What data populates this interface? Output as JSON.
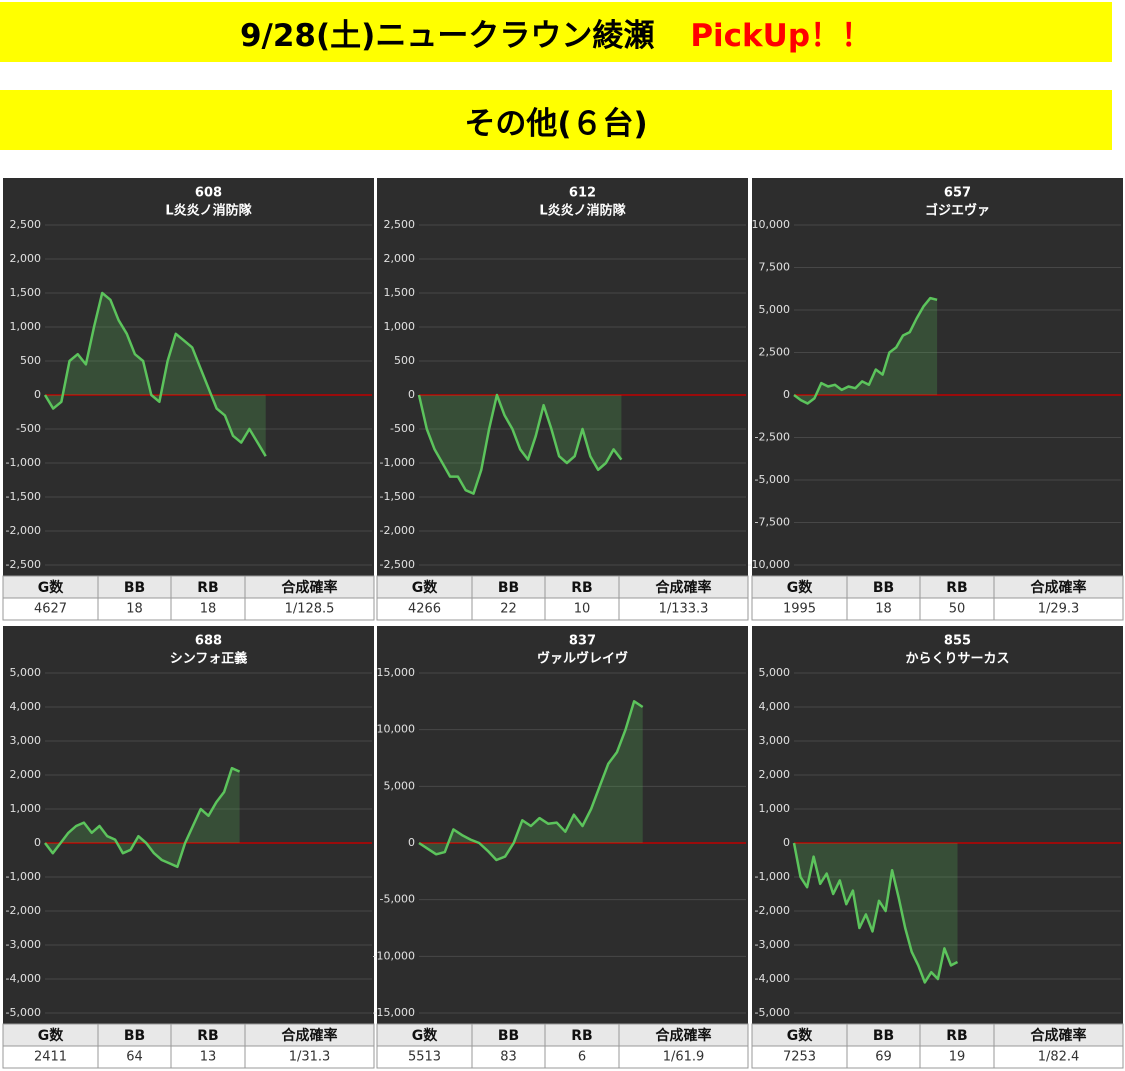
{
  "header": {
    "title": "9/28(土)ニュークラウン綾瀬",
    "highlight": "PickUp！！"
  },
  "section": "その他(６台)",
  "chart_data": [
    {
      "type": "line",
      "title": "608",
      "subtitle": "L炎炎ノ消防隊",
      "color": "#5cc45c",
      "values": [
        0,
        -200,
        -100,
        500,
        600,
        450,
        1000,
        1500,
        1400,
        1100,
        900,
        600,
        500,
        0,
        -100,
        500,
        900,
        800,
        700,
        400,
        100,
        -200,
        -300,
        -600,
        -700,
        -500,
        -700,
        -900
      ],
      "xlim": [
        0,
        40
      ],
      "ylim": [
        -2500,
        2500
      ],
      "yticks": [
        {
          "value": 2500,
          "label": "2,500"
        },
        {
          "value": 2000,
          "label": "2,000"
        },
        {
          "value": 1500,
          "label": "1,500"
        },
        {
          "value": 1000,
          "label": "1,000"
        },
        500,
        0,
        -500,
        {
          "value": -1000,
          "label": "-1,000"
        },
        {
          "value": -1500,
          "label": "-1,500"
        },
        {
          "value": -2000,
          "label": "-2,000"
        },
        {
          "value": -2500,
          "label": "-2,500"
        }
      ],
      "table": {
        "columns": [
          "G数",
          "BB",
          "RB",
          "合成確率"
        ],
        "row": [
          4627,
          18,
          18,
          "1/128.5"
        ]
      }
    },
    {
      "type": "line",
      "title": "612",
      "subtitle": "L炎炎ノ消防隊",
      "color": "#5cc45c",
      "values": [
        0,
        -500,
        -800,
        -1000,
        -1200,
        -1200,
        -1400,
        -1450,
        -1100,
        -500,
        0,
        -300,
        -500,
        -800,
        -950,
        -600,
        -150,
        -500,
        -900,
        -1000,
        -900,
        -500,
        -900,
        -1100,
        -1000,
        -800,
        -950
      ],
      "xlim": [
        0,
        42
      ],
      "ylim": [
        -2500,
        2500
      ],
      "yticks": [
        {
          "value": 2500,
          "label": "2,500"
        },
        {
          "value": 2000,
          "label": "2,000"
        },
        {
          "value": 1500,
          "label": "1,500"
        },
        {
          "value": 1000,
          "label": "1,000"
        },
        500,
        0,
        -500,
        {
          "value": -1000,
          "label": "-1,000"
        },
        {
          "value": -1500,
          "label": "-1,500"
        },
        {
          "value": -2000,
          "label": "-2,000"
        },
        {
          "value": -2500,
          "label": "-2,500"
        }
      ],
      "table": {
        "columns": [
          "G数",
          "BB",
          "RB",
          "合成確率"
        ],
        "row": [
          4266,
          22,
          10,
          "1/133.3"
        ]
      }
    },
    {
      "type": "line",
      "title": "657",
      "subtitle": "ゴジエヴァ",
      "color": "#5cc45c",
      "values": [
        0,
        -300,
        -500,
        -200,
        700,
        500,
        600,
        300,
        500,
        400,
        800,
        600,
        1500,
        1200,
        2500,
        2800,
        3500,
        3700,
        4500,
        5200,
        5700,
        5600
      ],
      "xlim": [
        0,
        48
      ],
      "ylim": [
        -10000,
        10000
      ],
      "yticks": [
        {
          "value": 10000,
          "label": "10,000"
        },
        {
          "value": 7500,
          "label": "7,500"
        },
        {
          "value": 5000,
          "label": "5,000"
        },
        {
          "value": 2500,
          "label": "2,500"
        },
        0,
        {
          "value": -2500,
          "label": "-2,500"
        },
        {
          "value": -5000,
          "label": "-5,000"
        },
        {
          "value": -7500,
          "label": "-7,500"
        },
        {
          "value": -10000,
          "label": "-10,000"
        }
      ],
      "table": {
        "columns": [
          "G数",
          "BB",
          "RB",
          "合成確率"
        ],
        "row": [
          1995,
          18,
          50,
          "1/29.3"
        ]
      }
    },
    {
      "type": "line",
      "title": "688",
      "subtitle": "シンフォ正義",
      "color": "#5cc45c",
      "values": [
        0,
        -300,
        0,
        300,
        500,
        600,
        300,
        500,
        200,
        100,
        -300,
        -200,
        200,
        0,
        -300,
        -500,
        -600,
        -700,
        0,
        500,
        1000,
        800,
        1200,
        1500,
        2200,
        2100
      ],
      "xlim": [
        0,
        42
      ],
      "ylim": [
        -5000,
        5000
      ],
      "yticks": [
        {
          "value": 5000,
          "label": "5,000"
        },
        {
          "value": 4000,
          "label": "4,000"
        },
        {
          "value": 3000,
          "label": "3,000"
        },
        {
          "value": 2000,
          "label": "2,000"
        },
        {
          "value": 1000,
          "label": "1,000"
        },
        0,
        {
          "value": -1000,
          "label": "-1,000"
        },
        {
          "value": -2000,
          "label": "-2,000"
        },
        {
          "value": -3000,
          "label": "-3,000"
        },
        {
          "value": -4000,
          "label": "-4,000"
        },
        {
          "value": -5000,
          "label": "-5,000"
        }
      ],
      "table": {
        "columns": [
          "G数",
          "BB",
          "RB",
          "合成確率"
        ],
        "row": [
          2411,
          64,
          13,
          "1/31.3"
        ]
      }
    },
    {
      "type": "line",
      "title": "837",
      "subtitle": "ヴァルヴレイヴ",
      "color": "#5cc45c",
      "values": [
        0,
        -500,
        -1000,
        -800,
        1200,
        700,
        300,
        0,
        -700,
        -1500,
        -1200,
        0,
        2000,
        1500,
        2200,
        1700,
        1800,
        1000,
        2500,
        1500,
        3000,
        5000,
        7000,
        8000,
        10000,
        12500,
        12000
      ],
      "xlim": [
        0,
        38
      ],
      "ylim": [
        -15000,
        15000
      ],
      "yticks": [
        {
          "value": 15000,
          "label": "15,000"
        },
        {
          "value": 10000,
          "label": "10,000"
        },
        {
          "value": 5000,
          "label": "5,000"
        },
        0,
        {
          "value": -5000,
          "label": "-5,000"
        },
        {
          "value": -10000,
          "label": "-10,000"
        },
        {
          "value": -15000,
          "label": "-15,000"
        }
      ],
      "table": {
        "columns": [
          "G数",
          "BB",
          "RB",
          "合成確率"
        ],
        "row": [
          5513,
          83,
          6,
          "1/61.9"
        ]
      }
    },
    {
      "type": "line",
      "title": "855",
      "subtitle": "からくりサーカス",
      "color": "#5cc45c",
      "values": [
        0,
        -1000,
        -1300,
        -400,
        -1200,
        -900,
        -1500,
        -1100,
        -1800,
        -1400,
        -2500,
        -2100,
        -2600,
        -1700,
        -2000,
        -800,
        -1600,
        -2500,
        -3200,
        -3600,
        -4100,
        -3800,
        -4000,
        -3100,
        -3600,
        -3500
      ],
      "xlim": [
        0,
        50
      ],
      "ylim": [
        -5000,
        5000
      ],
      "yticks": [
        {
          "value": 5000,
          "label": "5,000"
        },
        {
          "value": 4000,
          "label": "4,000"
        },
        {
          "value": 3000,
          "label": "3,000"
        },
        {
          "value": 2000,
          "label": "2,000"
        },
        {
          "value": 1000,
          "label": "1,000"
        },
        0,
        {
          "value": -1000,
          "label": "-1,000"
        },
        {
          "value": -2000,
          "label": "-2,000"
        },
        {
          "value": -3000,
          "label": "-3,000"
        },
        {
          "value": -4000,
          "label": "-4,000"
        },
        {
          "value": -5000,
          "label": "-5,000"
        }
      ],
      "table": {
        "columns": [
          "G数",
          "BB",
          "RB",
          "合成確率"
        ],
        "row": [
          7253,
          69,
          19,
          "1/82.4"
        ]
      }
    }
  ]
}
